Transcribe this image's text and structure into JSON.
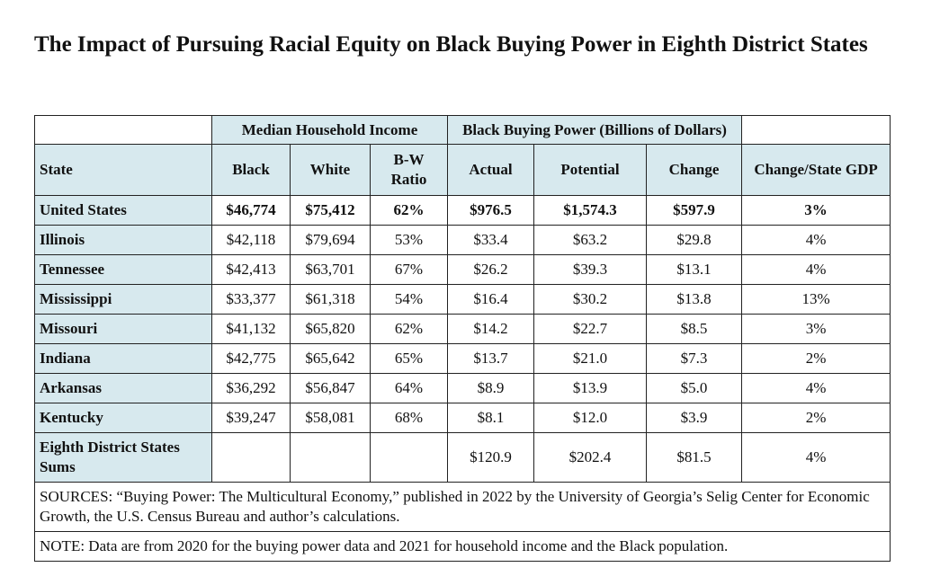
{
  "title": "The Impact of Pursuing Racial Equity on Black Buying Power in Eighth District States",
  "table": {
    "group_headers": [
      "Median Household Income",
      "Black Buying Power (Billions of Dollars)"
    ],
    "columns": [
      "State",
      "Black",
      "White",
      "B-W Ratio",
      "Actual",
      "Potential",
      "Change",
      "Change/State GDP"
    ],
    "rows": [
      [
        "United States",
        "$46,774",
        "$75,412",
        "62%",
        "$976.5",
        "$1,574.3",
        "$597.9",
        "3%"
      ],
      [
        "Illinois",
        "$42,118",
        "$79,694",
        "53%",
        "$33.4",
        "$63.2",
        "$29.8",
        "4%"
      ],
      [
        "Tennessee",
        "$42,413",
        "$63,701",
        "67%",
        "$26.2",
        "$39.3",
        "$13.1",
        "4%"
      ],
      [
        "Mississippi",
        "$33,377",
        "$61,318",
        "54%",
        "$16.4",
        "$30.2",
        "$13.8",
        "13%"
      ],
      [
        "Missouri",
        "$41,132",
        "$65,820",
        "62%",
        "$14.2",
        "$22.7",
        "$8.5",
        "3%"
      ],
      [
        "Indiana",
        "$42,775",
        "$65,642",
        "65%",
        "$13.7",
        "$21.0",
        "$7.3",
        "2%"
      ],
      [
        "Arkansas",
        "$36,292",
        "$56,847",
        "64%",
        "$8.9",
        "$13.9",
        "$5.0",
        "4%"
      ],
      [
        "Kentucky",
        "$39,247",
        "$58,081",
        "68%",
        "$8.1",
        "$12.0",
        "$3.9",
        "2%"
      ]
    ],
    "sums_row": [
      "Eighth District States Sums",
      "$120.9",
      "$202.4",
      "$81.5",
      "4%"
    ],
    "sources": "SOURCES: “Buying Power: The Multicultural Economy,” published in 2022 by the University of Georgia’s Selig Center for Economic Growth, the U.S. Census Bureau and author’s calculations.",
    "note": "NOTE: Data are from 2020 for the buying power data and 2021 for household income and the Black population."
  }
}
